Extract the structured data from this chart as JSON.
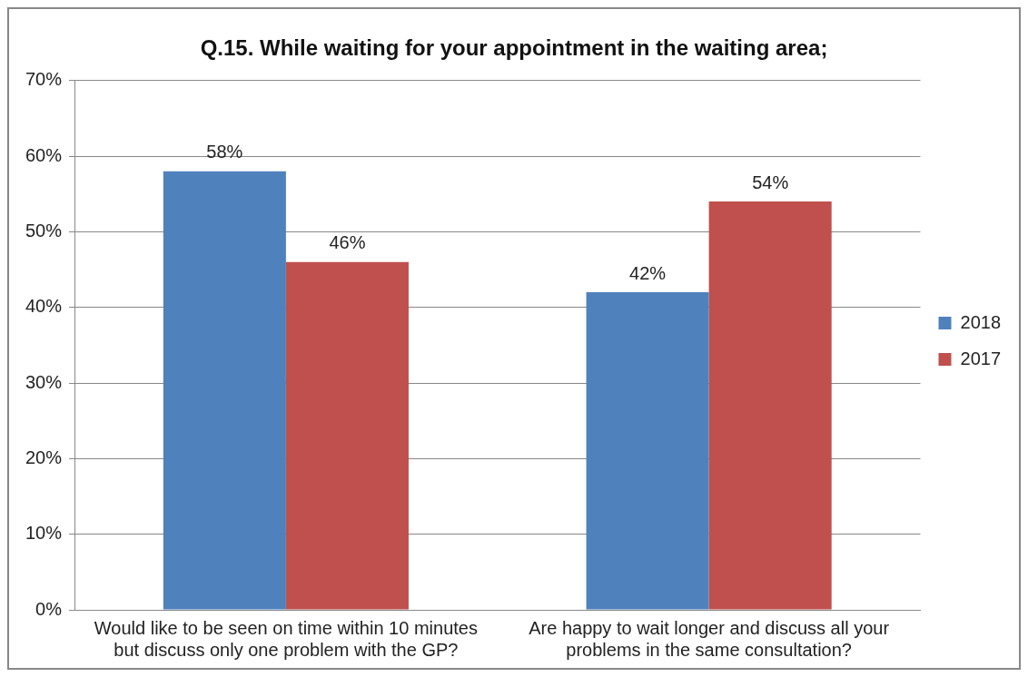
{
  "chart_data": {
    "type": "bar",
    "title": "Q.15. While waiting for your appointment in the waiting area;",
    "categories": [
      "Would like to be seen on time within 10 minutes but discuss only one problem with the GP?",
      "Are happy to wait longer and discuss all your problems in the same consultation?"
    ],
    "series": [
      {
        "name": "2018",
        "color": "#4f81bd",
        "values": [
          58,
          42
        ],
        "value_labels": [
          "58%",
          "42%"
        ]
      },
      {
        "name": "2017",
        "color": "#c0504d",
        "values": [
          46,
          54
        ],
        "value_labels": [
          "46%",
          "54%"
        ]
      }
    ],
    "ylim": [
      0,
      70
    ],
    "yticks": [
      {
        "value": 0,
        "label": "0%"
      },
      {
        "value": 10,
        "label": "10%"
      },
      {
        "value": 20,
        "label": "20%"
      },
      {
        "value": 30,
        "label": "30%"
      },
      {
        "value": 40,
        "label": "40%"
      },
      {
        "value": 50,
        "label": "50%"
      },
      {
        "value": 60,
        "label": "60%"
      },
      {
        "value": 70,
        "label": "70%"
      }
    ],
    "grid": "y",
    "legend": "right"
  }
}
